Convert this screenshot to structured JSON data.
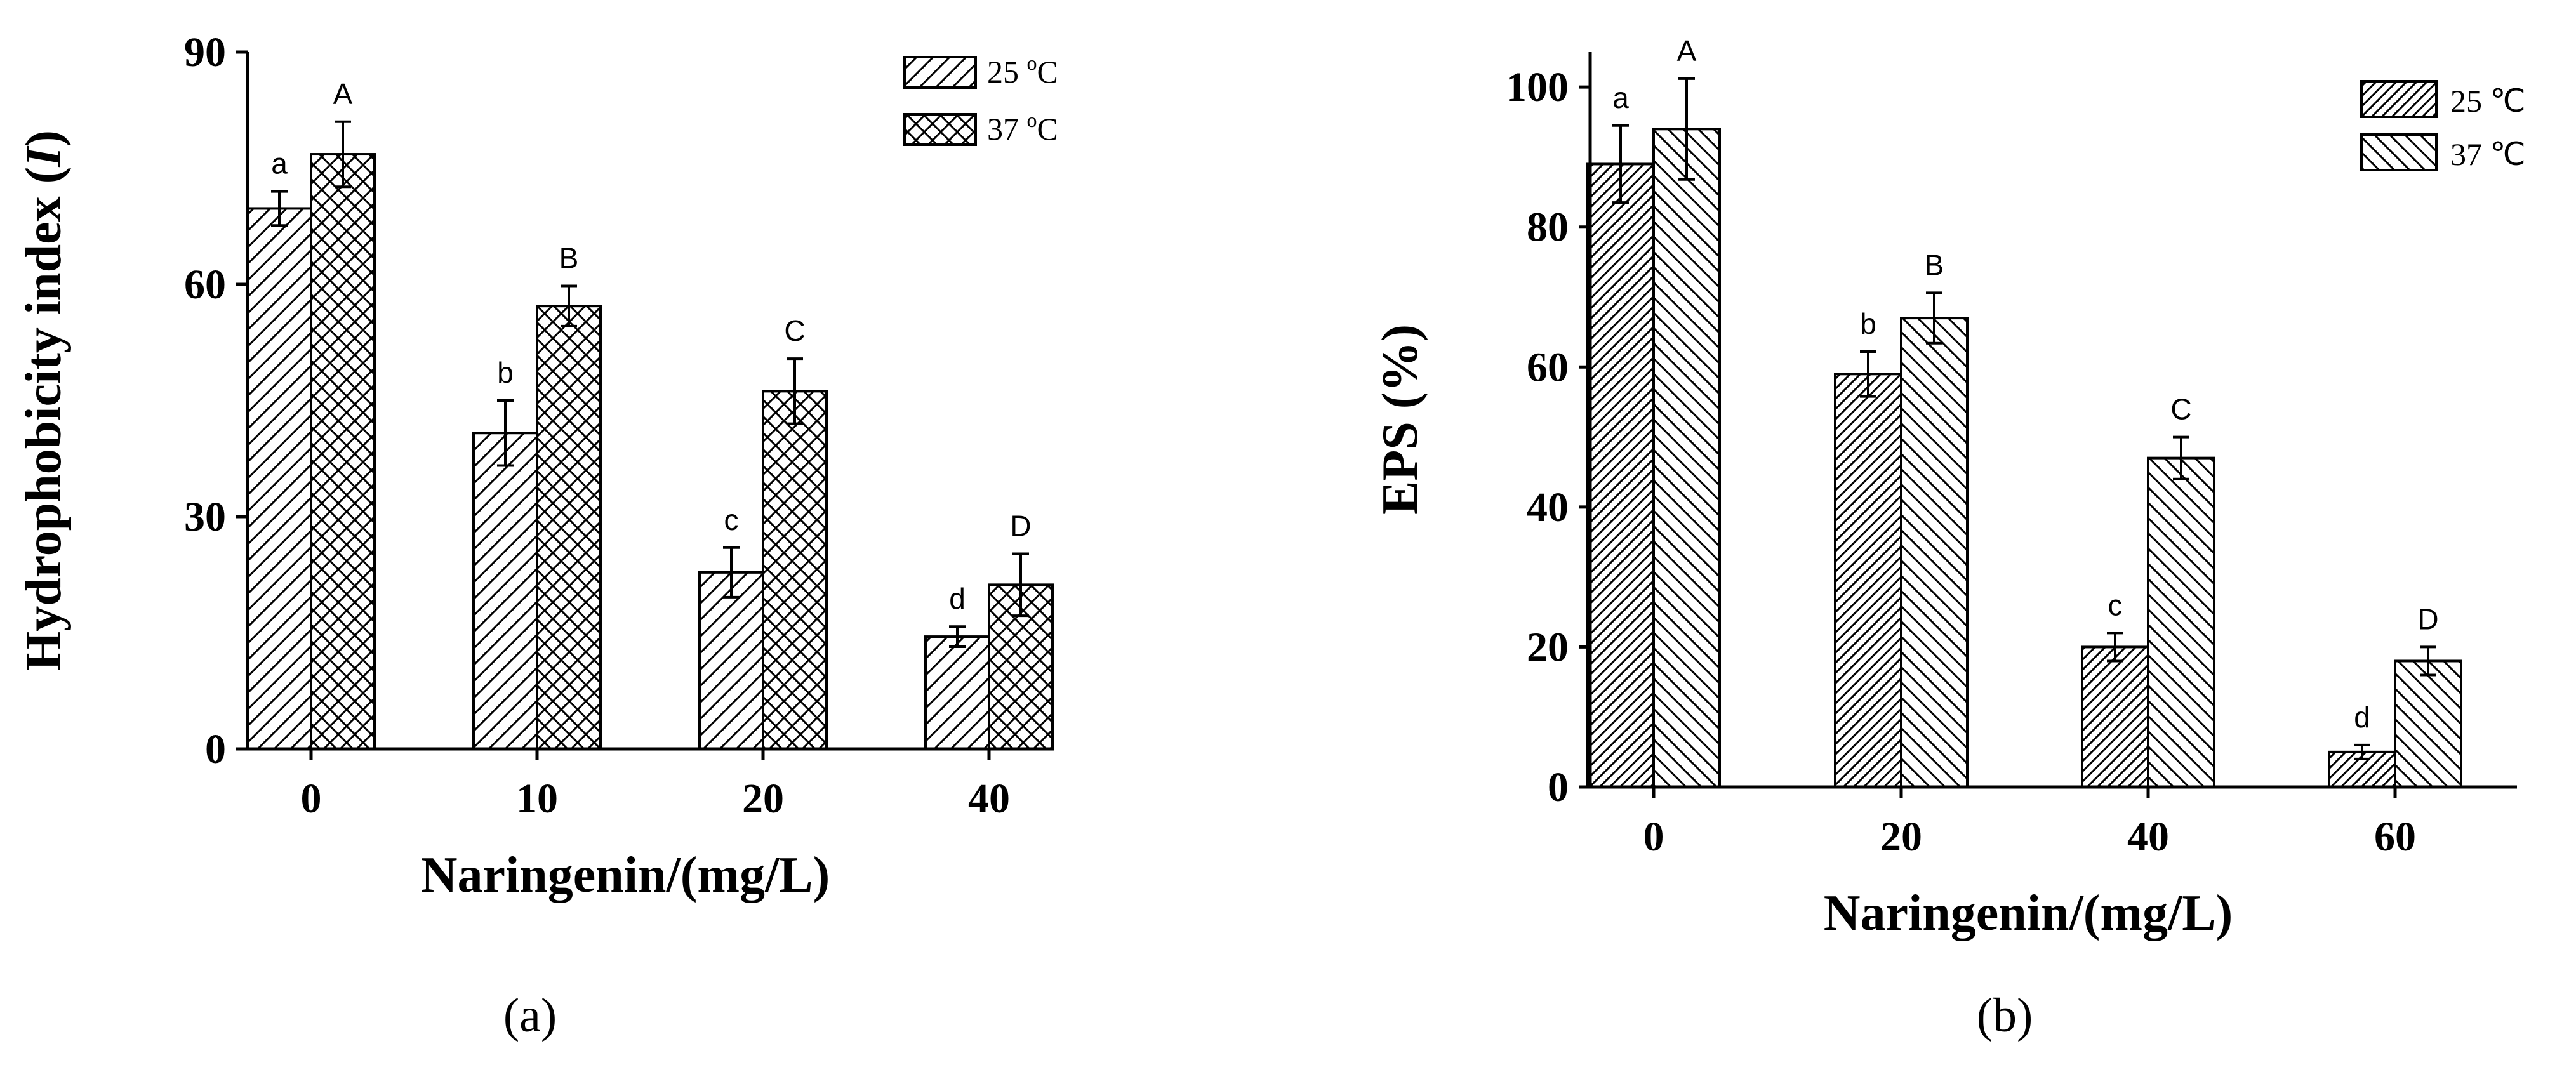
{
  "chart_data": [
    {
      "type": "bar",
      "panel_label": "(a)",
      "xlabel": "Naringenin/(mg/L)",
      "ylabel": "Hydrophobicity index (I)",
      "ylabel_parts": {
        "prefix": "Hydrophobicity index (",
        "italic": "I",
        "suffix": ")"
      },
      "categories": [
        "0",
        "10",
        "20",
        "40"
      ],
      "ylim": [
        0,
        90
      ],
      "yticks": [
        "0",
        "30",
        "60",
        "90"
      ],
      "legend_position": "top-right",
      "series": [
        {
          "name": "25 °C",
          "name_parts": {
            "num": "25 ",
            "sup": "o",
            "unit": "C"
          },
          "pattern": "diag-right",
          "values": [
            69.8,
            40.8,
            22.8,
            14.5
          ],
          "errors": [
            2.2,
            4.2,
            3.2,
            1.3
          ],
          "labels": [
            "a",
            "b",
            "c",
            "d"
          ]
        },
        {
          "name": "37 °C",
          "name_parts": {
            "num": "37 ",
            "sup": "o",
            "unit": "C"
          },
          "pattern": "crosshatch",
          "values": [
            76.8,
            57.2,
            46.2,
            21.2
          ],
          "errors": [
            4.2,
            2.6,
            4.2,
            4.0
          ],
          "labels": [
            "A",
            "B",
            "C",
            "D"
          ]
        }
      ]
    },
    {
      "type": "bar",
      "panel_label": "(b)",
      "xlabel": "Naringenin/(mg/L)",
      "ylabel": "EPS (%)",
      "categories": [
        "0",
        "20",
        "40",
        "60"
      ],
      "ylim": [
        0,
        105
      ],
      "yticks": [
        "0",
        "20",
        "40",
        "60",
        "80",
        "100"
      ],
      "legend_position": "top-right",
      "series": [
        {
          "name": "25 ℃",
          "pattern": "dense-diag-right",
          "values": [
            89,
            59,
            20,
            5
          ],
          "errors": [
            5.5,
            3.2,
            2.0,
            1.0
          ],
          "labels": [
            "a",
            "b",
            "c",
            "d"
          ]
        },
        {
          "name": "37 ℃",
          "pattern": "diag-left",
          "values": [
            94,
            67,
            47,
            18
          ],
          "errors": [
            7.2,
            3.6,
            3.0,
            2.0
          ],
          "labels": [
            "A",
            "B",
            "C",
            "D"
          ]
        }
      ]
    }
  ]
}
